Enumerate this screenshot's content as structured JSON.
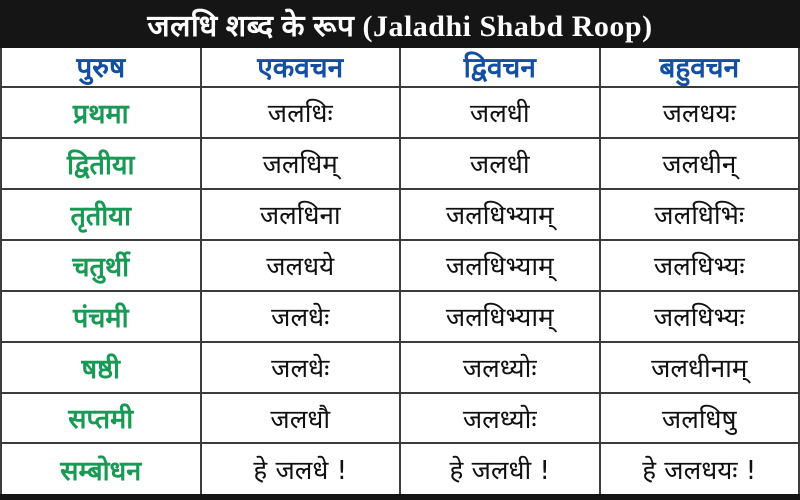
{
  "header": {
    "title": "जलधि शब्द के रूप (Jaladhi Shabd Roop)"
  },
  "table": {
    "columns": [
      "पुरुष",
      "एकवचन",
      "द्विवचन",
      "बहुवचन"
    ],
    "rows": [
      {
        "case": "प्रथमा",
        "forms": [
          "जलधिः",
          "जलधी",
          "जलधयः"
        ]
      },
      {
        "case": "द्वितीया",
        "forms": [
          "जलधिम्",
          "जलधी",
          "जलधीन्"
        ]
      },
      {
        "case": "तृतीया",
        "forms": [
          "जलधिना",
          "जलधिभ्याम्",
          "जलधिभिः"
        ]
      },
      {
        "case": "चतुर्थी",
        "forms": [
          "जलधये",
          "जलधिभ्याम्",
          "जलधिभ्यः"
        ]
      },
      {
        "case": "पंचमी",
        "forms": [
          "जलधेः",
          "जलधिभ्याम्",
          "जलधिभ्यः"
        ]
      },
      {
        "case": "षष्ठी",
        "forms": [
          "जलधेः",
          "जलध्योः",
          "जलधीनाम्"
        ]
      },
      {
        "case": "सप्तमी",
        "forms": [
          "जलधौ",
          "जलध्योः",
          "जलधिषु"
        ]
      },
      {
        "case": "सम्बोधन",
        "forms": [
          "हे जलधे !",
          "हे जलधी !",
          "हे जलधयः !"
        ]
      }
    ]
  },
  "colors": {
    "title_bar_bg": "#151515",
    "title_text": "#ffffff",
    "column_header_text": "#134fa2",
    "case_name_text": "#189a54",
    "form_text": "#111111",
    "grid_border": "#3c3c3c",
    "background": "#ffffff"
  }
}
